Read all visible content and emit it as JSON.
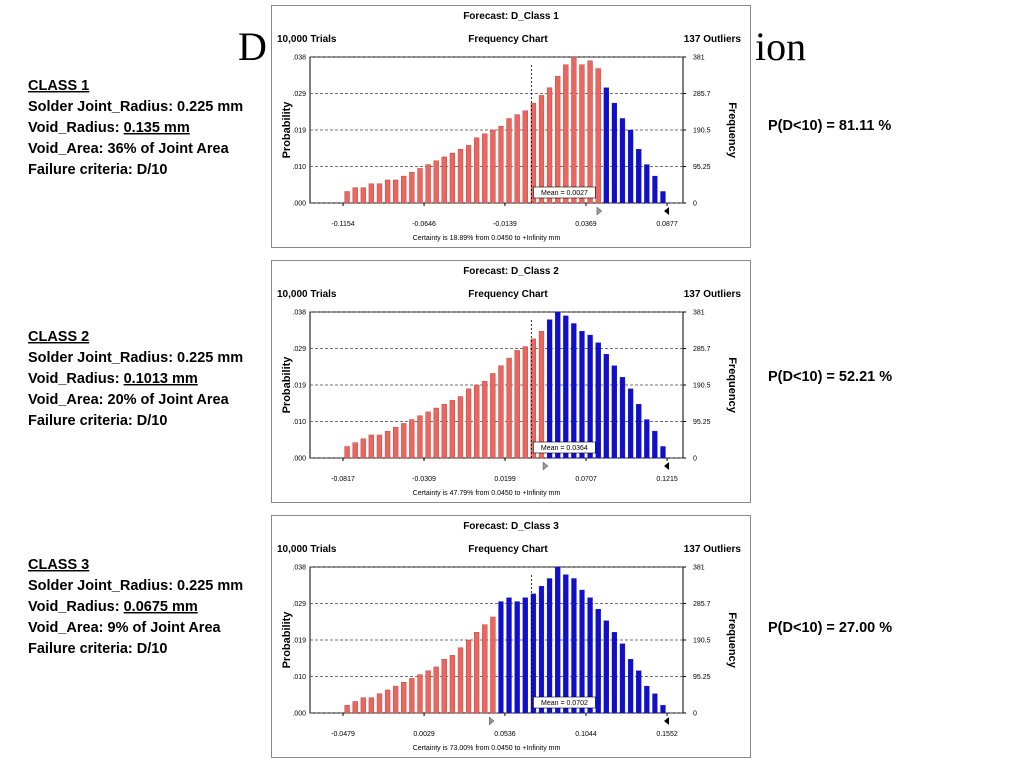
{
  "slide": {
    "title_left": "D",
    "title_right": "ion",
    "panels": [
      {
        "heading": "CLASS 1",
        "lines": [
          {
            "text": "Solder Joint_Radius: 0.225 mm"
          },
          {
            "text": "Void_Radius: ",
            "underlined": "0.135 mm"
          },
          {
            "text": "Void_Area: 36% of Joint Area"
          },
          {
            "text": "Failure criteria: D/10"
          }
        ],
        "result": "P(D<10) = 81.11 %"
      },
      {
        "heading": "CLASS 2",
        "lines": [
          {
            "text": "Solder Joint_Radius: 0.225 mm"
          },
          {
            "text": "Void_Radius: ",
            "underlined": "0.1013 mm"
          },
          {
            "text": "Void_Area: 20% of Joint Area"
          },
          {
            "text": "Failure criteria: D/10"
          }
        ],
        "result": "P(D<10) = 52.21 %"
      },
      {
        "heading": "CLASS 3",
        "lines": [
          {
            "text": "Solder Joint_Radius:  0.225 mm"
          },
          {
            "text": "Void_Radius: ",
            "underlined": "0.0675 mm"
          },
          {
            "text": "Void_Area: 9% of Joint Area"
          },
          {
            "text": "Failure criteria: D/10"
          }
        ],
        "result": "P(D<10) = 27.00 %"
      }
    ]
  },
  "chart_data": [
    {
      "type": "histogram",
      "title": "Forecast: D_Class 1",
      "trials": "10,000 Trials",
      "subtitle": "Frequency Chart",
      "outliers": "137 Outliers",
      "y_label": "Probability",
      "y2_label": "Frequency",
      "certainty": "Certainty is 18.89% from 0.0450 to +Infinity mm",
      "threshold": 0.045,
      "color": "#e8675f",
      "color_above": "#1010c8",
      "grid": true,
      "mean": {
        "value": 0.0027,
        "label": "Mean = 0.0027"
      },
      "xlim": [
        -0.1361,
        0.0977
      ],
      "xticks": [
        -0.1154,
        -0.0646,
        -0.0139,
        0.0369,
        0.0877
      ],
      "ylim": [
        0,
        0.038
      ],
      "yticks": [
        {
          "value": 0,
          "label": ".000"
        },
        {
          "value": 0.0095,
          "label": ".010"
        },
        {
          "value": 0.019,
          "label": ".019"
        },
        {
          "value": 0.0285,
          "label": ".029"
        },
        {
          "value": 0.038,
          "label": ".038"
        }
      ],
      "y2lim": [
        0,
        381
      ],
      "y2ticks": [
        0,
        95.25,
        190.5,
        285.7,
        381
      ],
      "bins": [
        -0.1154,
        -0.1103,
        -0.1052,
        -0.1002,
        -0.0951,
        -0.09,
        -0.0849,
        -0.0799,
        -0.0748,
        -0.0697,
        -0.0646,
        -0.0595,
        -0.0545,
        -0.0494,
        -0.0443,
        -0.0392,
        -0.0342,
        -0.0291,
        -0.024,
        -0.0189,
        -0.0139,
        -0.0088,
        -0.0037,
        0.0014,
        0.0065,
        0.0115,
        0.0166,
        0.0217,
        0.0268,
        0.0318,
        0.0369,
        0.042,
        0.0471,
        0.0522,
        0.0572,
        0.0623,
        0.0674,
        0.0725,
        0.0776,
        0.0826,
        0.0877
      ],
      "values": [
        0.003,
        0.004,
        0.004,
        0.005,
        0.005,
        0.006,
        0.006,
        0.007,
        0.008,
        0.009,
        0.01,
        0.011,
        0.012,
        0.013,
        0.014,
        0.015,
        0.017,
        0.018,
        0.019,
        0.02,
        0.022,
        0.023,
        0.024,
        0.026,
        0.028,
        0.03,
        0.033,
        0.036,
        0.038,
        0.036,
        0.037,
        0.035,
        0.03,
        0.026,
        0.022,
        0.019,
        0.014,
        0.01,
        0.007,
        0.003
      ]
    },
    {
      "type": "histogram",
      "title": "Forecast: D_Class 2",
      "trials": "10,000 Trials",
      "subtitle": "Frequency Chart",
      "outliers": "137 Outliers",
      "y_label": "Probability",
      "y2_label": "Frequency",
      "certainty": "Certainty is 47.79% from 0.0450 to +Infinity mm",
      "threshold": 0.045,
      "color": "#e8675f",
      "color_above": "#1010c8",
      "grid": true,
      "mean": {
        "value": 0.0364,
        "label": "Mean = 0.0364"
      },
      "xlim": [
        -0.1024,
        0.1315
      ],
      "xticks": [
        -0.0817,
        -0.0309,
        0.0199,
        0.0707,
        0.1215
      ],
      "ylim": [
        0,
        0.038
      ],
      "yticks": [
        {
          "value": 0,
          "label": ".000"
        },
        {
          "value": 0.0095,
          "label": ".010"
        },
        {
          "value": 0.019,
          "label": ".019"
        },
        {
          "value": 0.0285,
          "label": ".029"
        },
        {
          "value": 0.038,
          "label": ".038"
        }
      ],
      "y2lim": [
        0,
        381
      ],
      "y2ticks": [
        0,
        95.25,
        190.5,
        285.7,
        381
      ],
      "bins": [
        -0.0817,
        -0.0766,
        -0.0715,
        -0.0665,
        -0.0614,
        -0.0563,
        -0.0512,
        -0.0461,
        -0.0411,
        -0.036,
        -0.0309,
        -0.0258,
        -0.0207,
        -0.0157,
        -0.0106,
        -0.0055,
        -0.0004,
        0.0047,
        0.0097,
        0.0148,
        0.0199,
        0.025,
        0.0301,
        0.0351,
        0.0402,
        0.0453,
        0.0504,
        0.0555,
        0.0605,
        0.0656,
        0.0707,
        0.0758,
        0.0809,
        0.0859,
        0.091,
        0.0961,
        0.1012,
        0.1063,
        0.1113,
        0.1164,
        0.1215
      ],
      "values": [
        0.003,
        0.004,
        0.005,
        0.006,
        0.006,
        0.007,
        0.008,
        0.009,
        0.01,
        0.011,
        0.012,
        0.013,
        0.014,
        0.015,
        0.016,
        0.018,
        0.019,
        0.02,
        0.022,
        0.024,
        0.026,
        0.028,
        0.029,
        0.031,
        0.033,
        0.036,
        0.038,
        0.037,
        0.035,
        0.033,
        0.032,
        0.03,
        0.027,
        0.024,
        0.021,
        0.018,
        0.014,
        0.01,
        0.007,
        0.003
      ]
    },
    {
      "type": "histogram",
      "title": "Forecast: D_Class 3",
      "trials": "10,000 Trials",
      "subtitle": "Frequency Chart",
      "outliers": "137 Outliers",
      "y_label": "Probability",
      "y2_label": "Frequency",
      "certainty": "Certainty is 73.00% from 0.0450 to +Infinity mm",
      "threshold": 0.045,
      "color": "#e8675f",
      "color_above": "#1010c8",
      "grid": true,
      "mean": {
        "value": 0.0702,
        "label": "Mean = 0.0702"
      },
      "xlim": [
        -0.0686,
        0.1652
      ],
      "xticks": [
        -0.0479,
        0.0029,
        0.0536,
        0.1044,
        0.1552
      ],
      "ylim": [
        0,
        0.038
      ],
      "yticks": [
        {
          "value": 0,
          "label": ".000"
        },
        {
          "value": 0.0095,
          "label": ".010"
        },
        {
          "value": 0.019,
          "label": ".019"
        },
        {
          "value": 0.0285,
          "label": ".029"
        },
        {
          "value": 0.038,
          "label": ".038"
        }
      ],
      "y2lim": [
        0,
        381
      ],
      "y2ticks": [
        0,
        95.25,
        190.5,
        285.7,
        381
      ],
      "bins": [
        -0.0479,
        -0.0428,
        -0.0377,
        -0.0327,
        -0.0276,
        -0.0225,
        -0.0174,
        -0.0124,
        -0.0073,
        -0.0022,
        0.0029,
        0.008,
        0.013,
        0.0181,
        0.0232,
        0.0283,
        0.0333,
        0.0384,
        0.0435,
        0.0486,
        0.0536,
        0.0587,
        0.0638,
        0.0689,
        0.074,
        0.079,
        0.0841,
        0.0892,
        0.0943,
        0.0994,
        0.1044,
        0.1095,
        0.1146,
        0.1197,
        0.1247,
        0.1298,
        0.1349,
        0.14,
        0.1451,
        0.1501,
        0.1552
      ],
      "values": [
        0.002,
        0.003,
        0.004,
        0.004,
        0.005,
        0.006,
        0.007,
        0.008,
        0.009,
        0.01,
        0.011,
        0.012,
        0.014,
        0.015,
        0.017,
        0.019,
        0.021,
        0.023,
        0.025,
        0.029,
        0.03,
        0.029,
        0.03,
        0.031,
        0.033,
        0.035,
        0.038,
        0.036,
        0.035,
        0.032,
        0.03,
        0.027,
        0.024,
        0.021,
        0.018,
        0.014,
        0.011,
        0.007,
        0.005,
        0.002
      ]
    }
  ]
}
